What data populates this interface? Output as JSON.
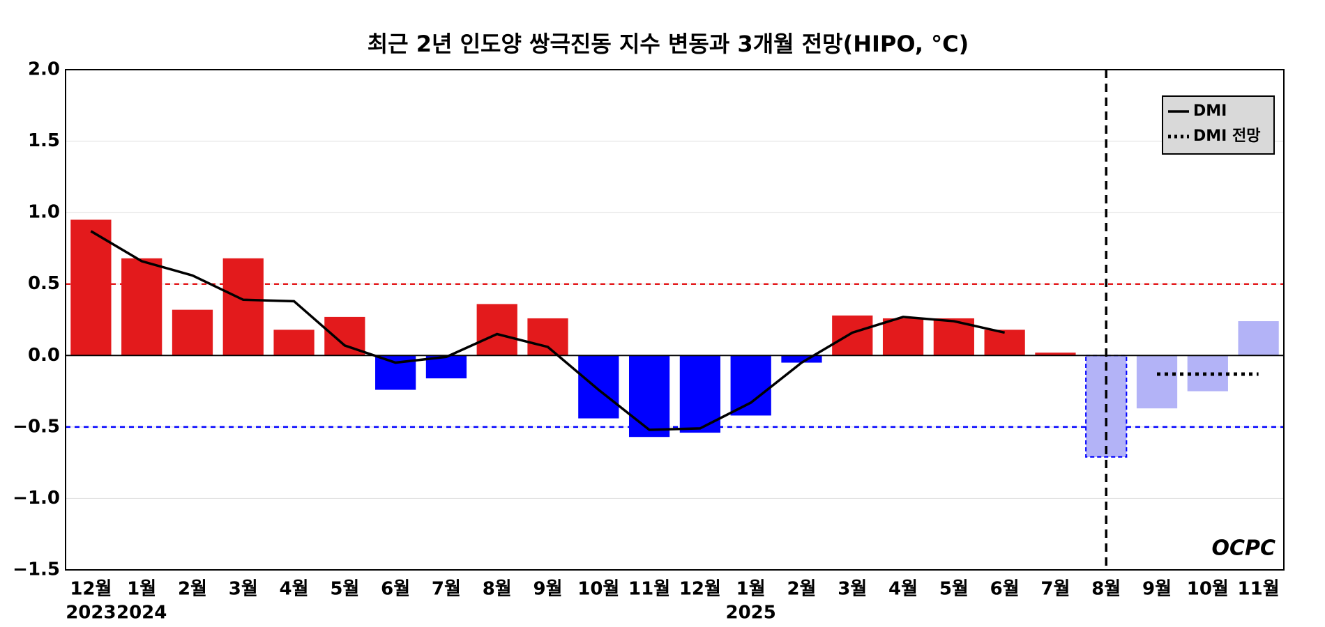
{
  "chart_data": {
    "type": "bar",
    "title": "최근 2년 인도양 쌍극진동 지수 변동과 3개월 전망(HIPO, °C)",
    "categories": [
      "12월",
      "1월",
      "2월",
      "3월",
      "4월",
      "5월",
      "6월",
      "7월",
      "8월",
      "9월",
      "10월",
      "11월",
      "12월",
      "1월",
      "2월",
      "3월",
      "4월",
      "5월",
      "6월",
      "7월",
      "8월",
      "9월",
      "10월",
      "11월"
    ],
    "years": [
      "2023",
      "2024",
      null,
      null,
      null,
      null,
      null,
      null,
      null,
      null,
      null,
      null,
      null,
      "2025",
      null,
      null,
      null,
      null,
      null,
      null,
      null,
      null,
      null,
      null
    ],
    "values": [
      0.95,
      0.68,
      0.32,
      0.68,
      0.18,
      0.27,
      -0.24,
      -0.16,
      0.36,
      0.26,
      -0.44,
      -0.57,
      -0.54,
      -0.42,
      -0.05,
      0.28,
      0.26,
      0.26,
      0.18,
      0.02,
      -0.71,
      -0.37,
      -0.25,
      0.24
    ],
    "colors": {
      "positive": "#e31a1c",
      "negative": "#0000ff",
      "forecast": "#b3b3f7"
    },
    "forecast_from": 20,
    "series": [
      {
        "name": "DMI",
        "color": "#000000",
        "style": "solid",
        "values": [
          0.87,
          0.66,
          0.56,
          0.39,
          0.38,
          0.07,
          -0.05,
          -0.01,
          0.15,
          0.06,
          -0.24,
          -0.52,
          -0.51,
          -0.33,
          -0.05,
          0.16,
          0.27,
          0.24,
          0.16,
          null,
          null,
          null,
          null,
          null
        ]
      },
      {
        "name": "DMI 전망",
        "color": "#000000",
        "style": "dotted",
        "values": [
          null,
          null,
          null,
          null,
          null,
          null,
          null,
          null,
          null,
          null,
          null,
          null,
          null,
          null,
          null,
          null,
          null,
          null,
          null,
          null,
          null,
          -0.13,
          -0.13,
          -0.13
        ]
      }
    ],
    "hlines": [
      {
        "value": 0.5,
        "color": "#e31a1c"
      },
      {
        "value": -0.5,
        "color": "#0000ff"
      }
    ],
    "ylim": [
      -1.5,
      2.0
    ],
    "yticks": [
      {
        "value": -1.5,
        "label": "−1.5"
      },
      {
        "value": -1.0,
        "label": "−1.0"
      },
      {
        "value": -0.5,
        "label": "−0.5"
      },
      {
        "value": 0,
        "label": "0.0"
      },
      {
        "value": 0.5,
        "label": "0.5"
      },
      {
        "value": 1.0,
        "label": "1.0"
      },
      {
        "value": 1.5,
        "label": "1.5"
      },
      {
        "value": 2.0,
        "label": "2.0"
      }
    ],
    "grid": true,
    "legend": "upper right",
    "logo": "OCPC"
  }
}
